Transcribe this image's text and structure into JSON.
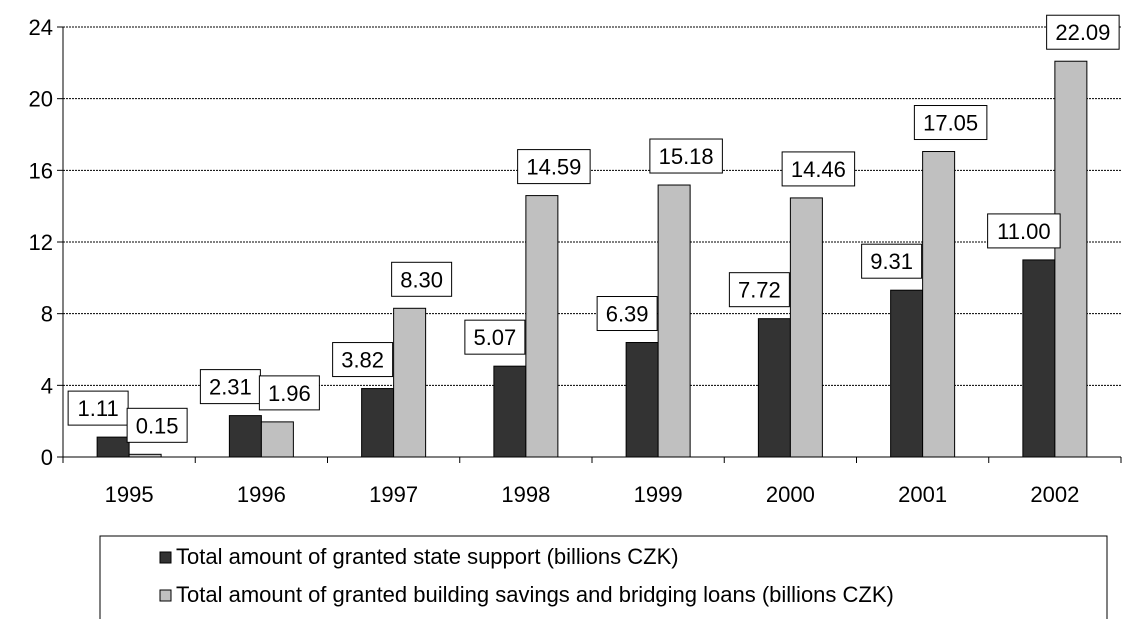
{
  "chart_data": {
    "type": "bar",
    "title": "",
    "xlabel": "",
    "ylabel": "",
    "categories": [
      "1995",
      "1996",
      "1997",
      "1998",
      "1999",
      "2000",
      "2001",
      "2002"
    ],
    "series": [
      {
        "name": "Total amount of granted state support (billions CZK)",
        "color": "#333333",
        "values": [
          1.11,
          2.31,
          3.82,
          5.07,
          6.39,
          7.72,
          9.31,
          11.0
        ],
        "labels": [
          "1.11",
          "2.31",
          "3.82",
          "5.07",
          "6.39",
          "7.72",
          "9.31",
          "11.00"
        ]
      },
      {
        "name": "Total amount of granted building savings and bridging loans (billions CZK)",
        "color": "#c0c0c0",
        "values": [
          0.15,
          1.96,
          8.3,
          14.59,
          15.18,
          14.46,
          17.05,
          22.09
        ],
        "labels": [
          "0.15",
          "1.96",
          "8.30",
          "14.59",
          "15.18",
          "14.46",
          "17.05",
          "22.09"
        ]
      }
    ],
    "ylim": [
      0,
      24
    ],
    "yticks": [
      0,
      4,
      8,
      12,
      16,
      20,
      24
    ],
    "ytick_labels": [
      "0",
      "4",
      "8",
      "12",
      "16",
      "20",
      "24"
    ],
    "grid": true,
    "legend_position": "bottom"
  }
}
